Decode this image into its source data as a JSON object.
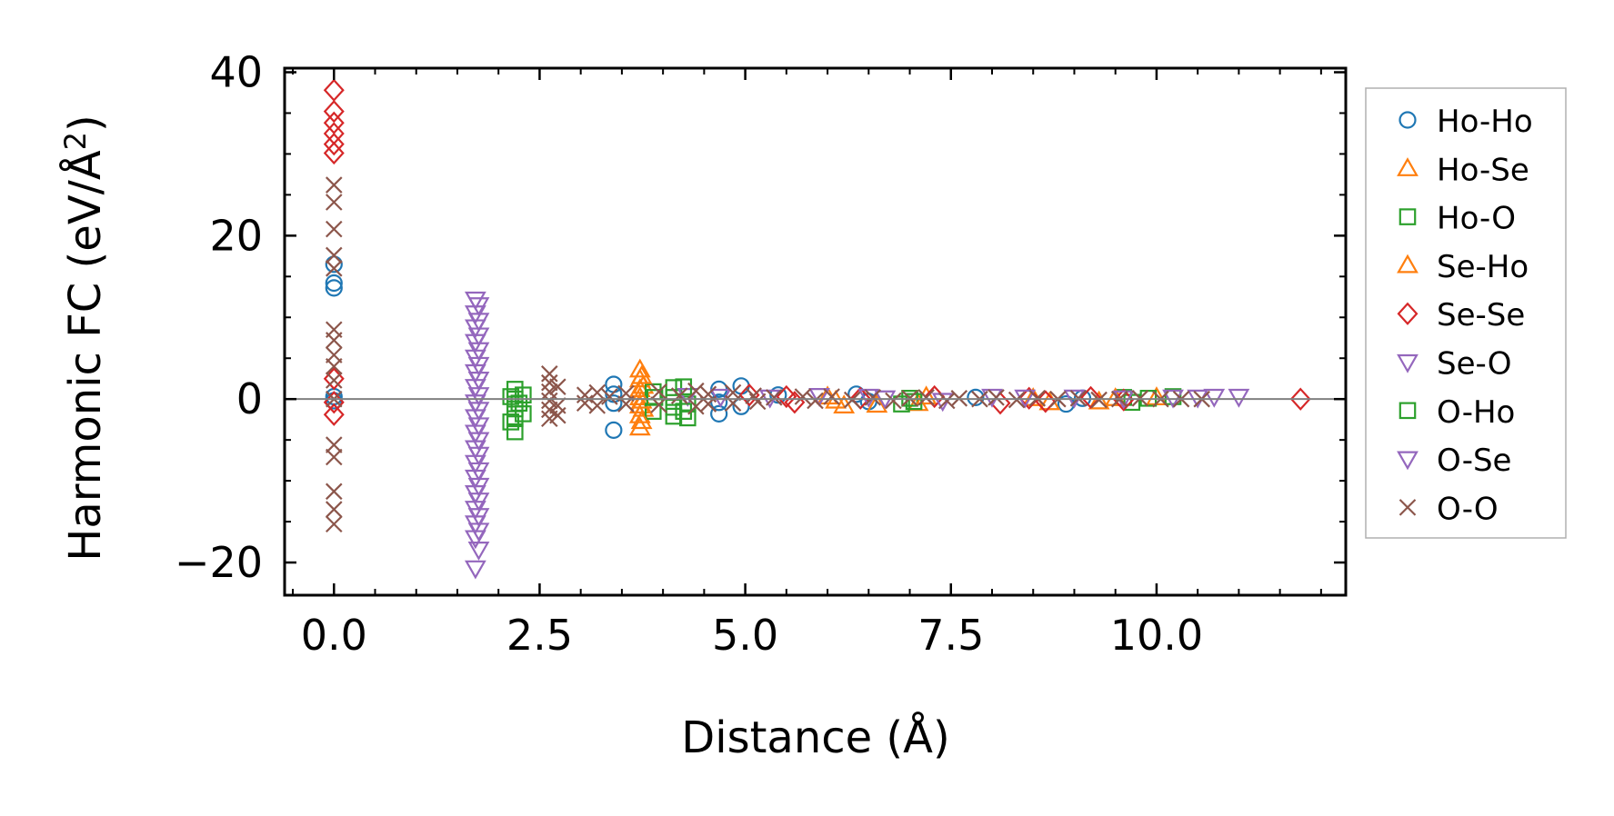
{
  "chart_data": {
    "type": "scatter",
    "title": "",
    "xlabel": "Distance (Å)",
    "ylabel_main": "Harmonic FC (eV/Å",
    "ylabel_sup": "2",
    "ylabel_close": ")",
    "xlim": [
      -0.6,
      12.3
    ],
    "ylim": [
      -24,
      40.5
    ],
    "xticks": [
      0.0,
      2.5,
      5.0,
      7.5,
      10.0
    ],
    "xtick_labels": [
      "0.0",
      "2.5",
      "5.0",
      "7.5",
      "10.0"
    ],
    "yticks": [
      -20,
      0,
      20,
      40
    ],
    "ytick_labels": [
      "−20",
      "0",
      "20",
      "40"
    ],
    "zero_line": 0,
    "grid": false,
    "legend_position": "outside-right",
    "series": [
      {
        "name": "Ho-Ho",
        "marker": "circle",
        "color": "#1f77b4",
        "points": [
          [
            0,
            16.5
          ],
          [
            0,
            14.2
          ],
          [
            0,
            13.6
          ],
          [
            0,
            0.3
          ],
          [
            0,
            -0.2
          ],
          [
            3.4,
            1.8
          ],
          [
            3.4,
            0.6
          ],
          [
            3.4,
            -0.5
          ],
          [
            3.4,
            -3.8
          ],
          [
            4.68,
            1.2
          ],
          [
            4.68,
            -0.4
          ],
          [
            4.68,
            -1.8
          ],
          [
            4.95,
            1.6
          ],
          [
            4.95,
            -0.9
          ],
          [
            5.4,
            0.5
          ],
          [
            6.35,
            0.6
          ],
          [
            6.5,
            -0.3
          ],
          [
            7.8,
            0.2
          ],
          [
            8.9,
            -0.6
          ],
          [
            9.1,
            0.1
          ]
        ]
      },
      {
        "name": "Ho-Se",
        "marker": "triangle-up",
        "color": "#ff7f0e",
        "points": [
          [
            3.72,
            3.6
          ],
          [
            3.72,
            2.4
          ],
          [
            3.72,
            1.2
          ],
          [
            3.72,
            0.2
          ],
          [
            3.72,
            -0.8
          ],
          [
            3.72,
            -2.0
          ],
          [
            3.72,
            -3.5
          ],
          [
            3.76,
            1.6
          ],
          [
            3.76,
            -1.2
          ],
          [
            6.0,
            0.3
          ],
          [
            6.2,
            -0.8
          ],
          [
            6.6,
            -0.7
          ],
          [
            7.1,
            -0.5
          ],
          [
            8.5,
            0.1
          ],
          [
            9.3,
            -0.3
          ],
          [
            10.0,
            0.2
          ]
        ]
      },
      {
        "name": "Ho-O",
        "marker": "square",
        "color": "#2ca02c",
        "points": [
          [
            2.2,
            1.2
          ],
          [
            2.2,
            0.0
          ],
          [
            2.2,
            -1.2
          ],
          [
            2.2,
            -2.4
          ],
          [
            2.2,
            -4.0
          ],
          [
            2.3,
            0.5
          ],
          [
            2.3,
            -1.8
          ],
          [
            3.88,
            0.9
          ],
          [
            3.88,
            -1.5
          ],
          [
            4.13,
            1.4
          ],
          [
            4.13,
            0.2
          ],
          [
            4.13,
            -1.0
          ],
          [
            4.13,
            -2.1
          ],
          [
            4.3,
            -0.6
          ],
          [
            4.3,
            -2.3
          ],
          [
            6.9,
            -0.6
          ],
          [
            7.0,
            0.1
          ],
          [
            9.6,
            0.2
          ],
          [
            9.7,
            -0.4
          ],
          [
            10.2,
            0.3
          ]
        ]
      },
      {
        "name": "Se-Ho",
        "marker": "triangle-up",
        "color": "#ff7f0e",
        "points": [
          [
            3.74,
            2.8
          ],
          [
            3.74,
            -0.2
          ],
          [
            3.74,
            -2.7
          ],
          [
            6.1,
            -0.2
          ],
          [
            7.2,
            0.3
          ],
          [
            8.7,
            -0.4
          ],
          [
            9.5,
            0.1
          ]
        ]
      },
      {
        "name": "Se-Se",
        "marker": "diamond",
        "color": "#d62728",
        "points": [
          [
            0,
            37.8
          ],
          [
            0,
            35.2
          ],
          [
            0,
            33.8
          ],
          [
            0,
            32.5
          ],
          [
            0,
            31.2
          ],
          [
            0,
            30.1
          ],
          [
            0,
            2.5
          ],
          [
            0,
            -0.4
          ],
          [
            0,
            -1.9
          ],
          [
            5.05,
            0.5
          ],
          [
            5.5,
            0.3
          ],
          [
            5.6,
            -0.4
          ],
          [
            6.4,
            0.1
          ],
          [
            7.3,
            0.3
          ],
          [
            8.1,
            -0.5
          ],
          [
            8.45,
            0.1
          ],
          [
            8.65,
            -0.3
          ],
          [
            9.2,
            0.2
          ],
          [
            9.6,
            -0.1
          ],
          [
            11.75,
            0.0
          ]
        ]
      },
      {
        "name": "Se-O",
        "marker": "triangle-down",
        "color": "#9467bd",
        "points": [
          [
            1.72,
            12.2
          ],
          [
            1.72,
            10.5
          ],
          [
            1.72,
            8.8
          ],
          [
            1.72,
            7.0
          ],
          [
            1.72,
            5.1
          ],
          [
            1.72,
            3.3
          ],
          [
            1.72,
            1.5
          ],
          [
            1.72,
            -0.4
          ],
          [
            1.72,
            -2.2
          ],
          [
            1.72,
            -4.1
          ],
          [
            1.72,
            -6.0
          ],
          [
            1.72,
            -7.8
          ],
          [
            1.72,
            -9.6
          ],
          [
            1.72,
            -11.5
          ],
          [
            1.72,
            -13.4
          ],
          [
            1.72,
            -15.2
          ],
          [
            1.72,
            -17.0
          ],
          [
            1.72,
            -20.7
          ],
          [
            4.3,
            0.4
          ],
          [
            5.3,
            0.2
          ],
          [
            6.5,
            0.3
          ],
          [
            7.4,
            -0.2
          ],
          [
            8.4,
            0.2
          ],
          [
            9.6,
            0.1
          ],
          [
            10.5,
            0.2
          ],
          [
            11.0,
            0.3
          ]
        ]
      },
      {
        "name": "O-Ho",
        "marker": "square",
        "color": "#2ca02c",
        "points": [
          [
            2.15,
            0.3
          ],
          [
            2.15,
            -2.8
          ],
          [
            2.25,
            -0.5
          ],
          [
            3.9,
            0.2
          ],
          [
            4.25,
            1.5
          ],
          [
            4.25,
            -1.5
          ],
          [
            7.05,
            -0.3
          ],
          [
            9.9,
            0.1
          ]
        ]
      },
      {
        "name": "O-Se",
        "marker": "triangle-down",
        "color": "#9467bd",
        "points": [
          [
            1.76,
            11.5
          ],
          [
            1.76,
            9.6
          ],
          [
            1.76,
            7.8
          ],
          [
            1.76,
            6.0
          ],
          [
            1.76,
            4.2
          ],
          [
            1.76,
            2.4
          ],
          [
            1.76,
            0.5
          ],
          [
            1.76,
            -1.3
          ],
          [
            1.76,
            -3.2
          ],
          [
            1.76,
            -5.0
          ],
          [
            1.76,
            -6.8
          ],
          [
            1.76,
            -8.7
          ],
          [
            1.76,
            -10.6
          ],
          [
            1.76,
            -12.4
          ],
          [
            1.76,
            -14.3
          ],
          [
            1.76,
            -16.1
          ],
          [
            1.76,
            -18.4
          ],
          [
            4.7,
            0.3
          ],
          [
            5.9,
            0.4
          ],
          [
            6.7,
            0.1
          ],
          [
            8.0,
            0.3
          ],
          [
            9.0,
            0.2
          ],
          [
            10.2,
            0.2
          ],
          [
            10.7,
            0.3
          ]
        ]
      },
      {
        "name": "O-O",
        "marker": "x",
        "color": "#8c564b",
        "points": [
          [
            0,
            26.2
          ],
          [
            0,
            24.1
          ],
          [
            0,
            20.8
          ],
          [
            0,
            17.6
          ],
          [
            0,
            16.0
          ],
          [
            0,
            8.5
          ],
          [
            0,
            7.2
          ],
          [
            0,
            5.4
          ],
          [
            0,
            4.0
          ],
          [
            0,
            2.3
          ],
          [
            0,
            0.0
          ],
          [
            0,
            -5.6
          ],
          [
            0,
            -7.1
          ],
          [
            0,
            -11.3
          ],
          [
            0,
            -13.5
          ],
          [
            0,
            -15.3
          ],
          [
            2.62,
            3.1
          ],
          [
            2.62,
            2.0
          ],
          [
            2.62,
            0.9
          ],
          [
            2.62,
            -0.2
          ],
          [
            2.62,
            -1.3
          ],
          [
            2.62,
            -2.4
          ],
          [
            2.72,
            1.5
          ],
          [
            2.72,
            -0.8
          ],
          [
            2.72,
            -2.0
          ],
          [
            3.05,
            0.5
          ],
          [
            3.05,
            -0.5
          ],
          [
            3.2,
            0.8
          ],
          [
            3.2,
            -0.8
          ],
          [
            3.35,
            0.3
          ],
          [
            3.55,
            0.7
          ],
          [
            3.55,
            -0.6
          ],
          [
            3.95,
            0.9
          ],
          [
            3.95,
            -0.7
          ],
          [
            4.2,
            0.4
          ],
          [
            4.4,
            1.0
          ],
          [
            4.4,
            -0.9
          ],
          [
            4.55,
            0.6
          ],
          [
            4.55,
            -0.6
          ],
          [
            4.85,
            0.8
          ],
          [
            4.85,
            -0.5
          ],
          [
            5.1,
            0.4
          ],
          [
            5.15,
            -0.3
          ],
          [
            5.35,
            0.2
          ],
          [
            5.7,
            0.3
          ],
          [
            5.85,
            -0.2
          ],
          [
            6.05,
            0.3
          ],
          [
            6.3,
            -0.1
          ],
          [
            6.55,
            0.2
          ],
          [
            6.8,
            -0.2
          ],
          [
            7.0,
            0.1
          ],
          [
            7.2,
            0.2
          ],
          [
            7.45,
            -0.2
          ],
          [
            7.6,
            0.1
          ],
          [
            7.85,
            0.0
          ],
          [
            8.05,
            0.2
          ],
          [
            8.3,
            -0.1
          ],
          [
            8.55,
            0.1
          ],
          [
            8.8,
            0.0
          ],
          [
            9.05,
            0.1
          ],
          [
            9.3,
            -0.1
          ],
          [
            9.55,
            0.0
          ],
          [
            9.8,
            0.1
          ],
          [
            10.05,
            0.0
          ],
          [
            10.3,
            0.0
          ],
          [
            10.55,
            0.0
          ]
        ]
      }
    ]
  }
}
